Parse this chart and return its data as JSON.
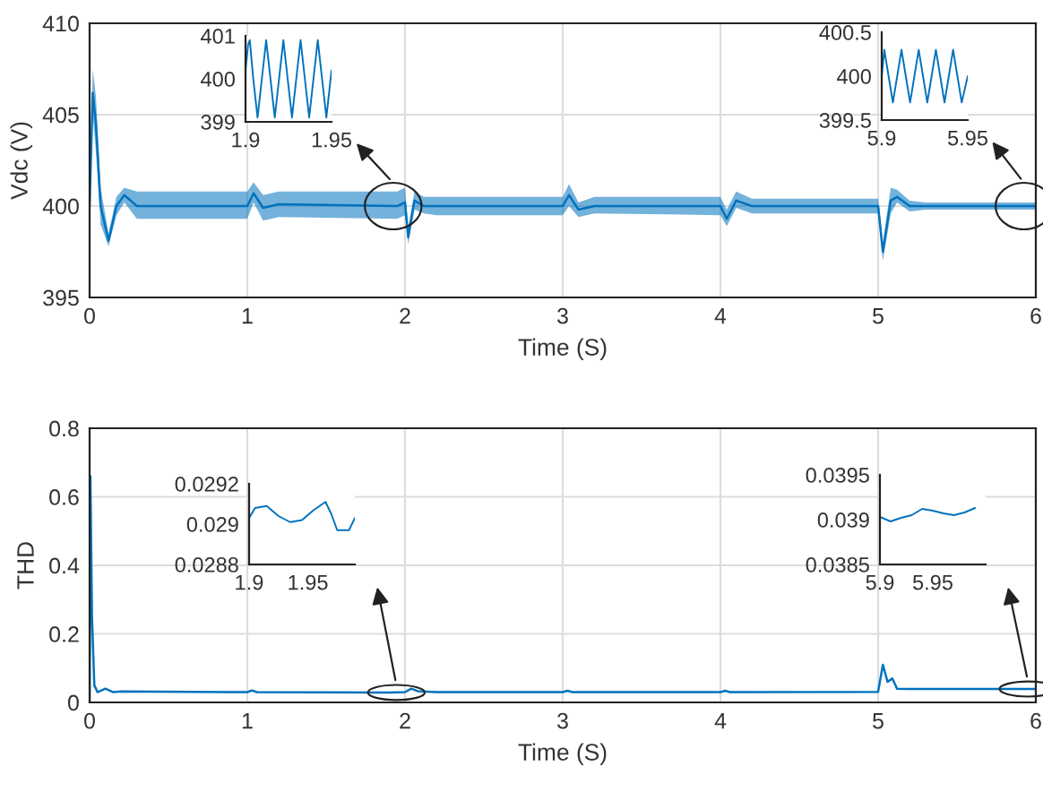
{
  "chart_data": [
    {
      "type": "line",
      "ylabel": "Vdc (V)",
      "xlabel": "Time (S)",
      "xlim": [
        0,
        6
      ],
      "ylim": [
        395,
        410
      ],
      "xticks": [
        0,
        1,
        2,
        3,
        4,
        5,
        6
      ],
      "yticks": [
        395,
        400,
        405,
        410
      ],
      "grid": true,
      "series": [
        {
          "color": "#0072bd",
          "x": [
            0,
            0.02,
            0.04,
            0.07,
            0.12,
            0.17,
            0.22,
            0.3,
            1.0,
            1.04,
            1.1,
            1.2,
            1.95,
            2.0,
            2.02,
            2.06,
            2.12,
            2.2,
            3.0,
            3.04,
            3.1,
            3.2,
            4.0,
            4.04,
            4.1,
            4.2,
            5.0,
            5.03,
            5.08,
            5.12,
            5.2,
            5.3,
            6.0
          ],
          "values": [
            400,
            406.2,
            404.5,
            400,
            398.1,
            400,
            400.6,
            400,
            400,
            400.7,
            399.9,
            400.1,
            400,
            400.2,
            398.3,
            400.3,
            400,
            400,
            400,
            400.6,
            399.8,
            400,
            400,
            399.3,
            400.3,
            400,
            400,
            397.5,
            400.3,
            400.5,
            400,
            400,
            400
          ],
          "lower": [
            400,
            405,
            403,
            399,
            397.8,
            399.5,
            400.2,
            399.3,
            399.3,
            400.2,
            399.2,
            399.4,
            399.3,
            399.5,
            397.9,
            399.8,
            399.6,
            399.5,
            399.5,
            400,
            399.4,
            399.6,
            399.5,
            398.9,
            399.9,
            399.6,
            399.6,
            397.0,
            399.6,
            400.2,
            399.7,
            399.8,
            399.8
          ],
          "upper": [
            400,
            407.5,
            406,
            401,
            398.5,
            400.5,
            401,
            400.8,
            400.8,
            401.3,
            400.6,
            400.8,
            400.8,
            401,
            398.8,
            400.8,
            400.5,
            400.5,
            400.5,
            401.2,
            400.2,
            400.5,
            400.5,
            399.8,
            400.8,
            400.4,
            400.4,
            398,
            401,
            400.9,
            400.3,
            400.2,
            400.2
          ]
        }
      ]
    },
    {
      "type": "line",
      "xlim": [
        1.9,
        1.95
      ],
      "ylim": [
        399,
        401
      ],
      "xticks": [
        1.9,
        1.95
      ],
      "yticks": [
        399,
        400,
        401
      ],
      "grid": false,
      "series": [
        {
          "color": "#0072bd",
          "x": [
            1.9,
            1.9015,
            1.9025,
            1.9045,
            1.907,
            1.9095,
            1.912,
            1.9145,
            1.917,
            1.9195,
            1.922,
            1.9245,
            1.927,
            1.9295,
            1.932,
            1.9345,
            1.937,
            1.9395,
            1.942,
            1.9445,
            1.947,
            1.95
          ],
          "values": [
            400.2,
            400.8,
            400.9,
            400,
            399.1,
            400,
            400.9,
            400,
            399.1,
            400,
            400.9,
            400,
            399.1,
            400,
            400.9,
            400,
            399.1,
            400,
            400.9,
            400,
            399.1,
            400.2
          ]
        }
      ]
    },
    {
      "type": "line",
      "xlim": [
        5.9,
        5.95
      ],
      "ylim": [
        399.5,
        400.5
      ],
      "xticks": [
        5.9,
        5.95
      ],
      "yticks": [
        399.5,
        400,
        400.5
      ],
      "grid": false,
      "series": [
        {
          "color": "#0072bd",
          "x": [
            5.9,
            5.9015,
            5.904,
            5.9065,
            5.909,
            5.9115,
            5.914,
            5.9165,
            5.919,
            5.9215,
            5.924,
            5.9265,
            5.929,
            5.9315,
            5.934,
            5.9365,
            5.939,
            5.9415,
            5.944,
            5.9465,
            5.95
          ],
          "values": [
            400,
            400.3,
            400,
            399.7,
            400,
            400.3,
            400,
            399.7,
            400,
            400.3,
            400,
            399.7,
            400,
            400.3,
            400,
            399.7,
            400,
            400.3,
            400,
            399.7,
            400
          ]
        }
      ]
    },
    {
      "type": "line",
      "ylabel": "THD",
      "xlabel": "Time (S)",
      "xlim": [
        0,
        6
      ],
      "ylim": [
        0,
        0.8
      ],
      "xticks": [
        0,
        1,
        2,
        3,
        4,
        5,
        6
      ],
      "yticks": [
        0,
        0.2,
        0.4,
        0.6,
        0.8
      ],
      "grid": true,
      "series": [
        {
          "color": "#0072bd",
          "x": [
            0,
            0.005,
            0.015,
            0.03,
            0.05,
            0.1,
            0.15,
            0.2,
            1.0,
            1.03,
            1.06,
            1.9,
            2.0,
            2.04,
            2.08,
            2.2,
            3.0,
            3.03,
            3.06,
            4.0,
            4.03,
            4.06,
            5.0,
            5.03,
            5.06,
            5.09,
            5.12,
            5.2,
            6.0
          ],
          "values": [
            0,
            0.66,
            0.25,
            0.05,
            0.03,
            0.04,
            0.03,
            0.032,
            0.03,
            0.035,
            0.03,
            0.029,
            0.03,
            0.04,
            0.033,
            0.03,
            0.03,
            0.034,
            0.03,
            0.03,
            0.034,
            0.03,
            0.031,
            0.11,
            0.06,
            0.07,
            0.04,
            0.039,
            0.039
          ]
        }
      ]
    },
    {
      "type": "line",
      "xlim": [
        1.9,
        1.99
      ],
      "ylim": [
        0.0288,
        0.0292
      ],
      "xticks": [
        1.9,
        1.95
      ],
      "yticks": [
        0.0288,
        0.029,
        0.0292
      ],
      "grid": false,
      "series": [
        {
          "color": "#0072bd",
          "x": [
            1.9,
            1.905,
            1.915,
            1.925,
            1.935,
            1.945,
            1.955,
            1.965,
            1.97,
            1.975,
            1.985,
            1.99
          ],
          "values": [
            0.02903,
            0.02908,
            0.02909,
            0.02904,
            0.02901,
            0.02902,
            0.02907,
            0.02911,
            0.02905,
            0.02897,
            0.02897,
            0.02903
          ]
        }
      ]
    },
    {
      "type": "line",
      "xlim": [
        5.9,
        6.0
      ],
      "ylim": [
        0.0385,
        0.0395
      ],
      "xticks": [
        5.9,
        5.95
      ],
      "yticks": [
        0.0385,
        0.039,
        0.0395
      ],
      "grid": false,
      "series": [
        {
          "color": "#0072bd",
          "x": [
            5.9,
            5.91,
            5.92,
            5.93,
            5.94,
            5.95,
            5.96,
            5.97,
            5.98,
            5.99
          ],
          "values": [
            0.03903,
            0.03898,
            0.03902,
            0.03905,
            0.03912,
            0.0391,
            0.03907,
            0.03905,
            0.03908,
            0.03913
          ]
        }
      ]
    }
  ]
}
